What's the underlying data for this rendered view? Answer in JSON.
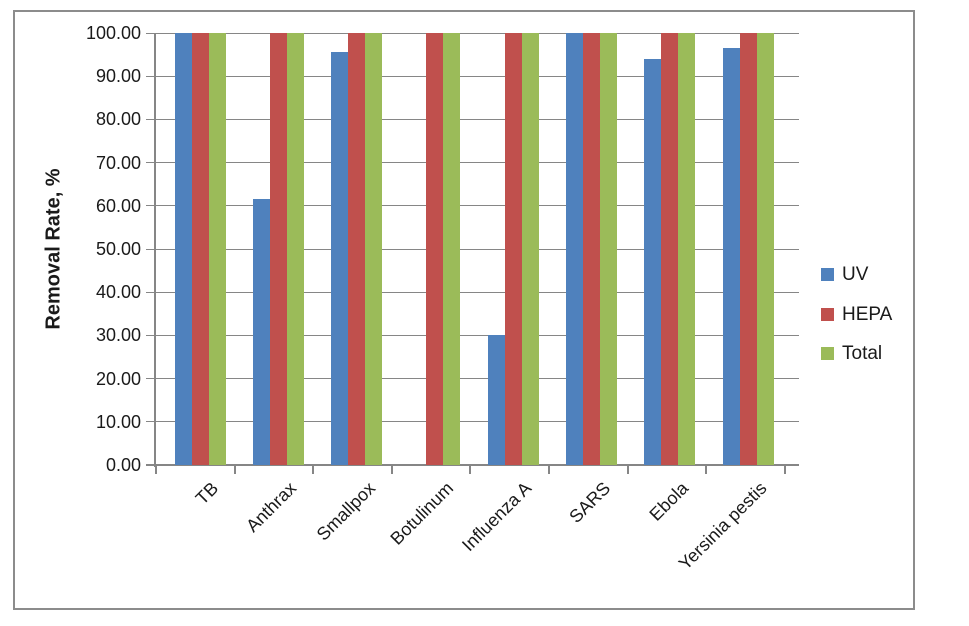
{
  "chart_data": {
    "type": "bar",
    "title": "",
    "categories": [
      "TB",
      "Anthrax",
      "Smallpox",
      "Botulinum",
      "Influenza A",
      "SARS",
      "Ebola",
      "Yersinia pestis"
    ],
    "series": [
      {
        "name": "UV",
        "color": "#4F81BD",
        "values": [
          100,
          61.5,
          95.5,
          0,
          30,
          100,
          94,
          96.5
        ]
      },
      {
        "name": "HEPA",
        "color": "#C0504D",
        "values": [
          100,
          100,
          100,
          100,
          100,
          100,
          100,
          100
        ]
      },
      {
        "name": "Total",
        "color": "#9BBB59",
        "values": [
          100,
          100,
          100,
          100,
          100,
          100,
          100,
          100
        ]
      }
    ],
    "xlabel": "",
    "ylabel": "Removal Rate, %",
    "ylim": [
      0,
      100
    ],
    "ytick_step": 10,
    "ytick_decimals": 2,
    "grid": true,
    "legend_position": "right",
    "colors": {
      "axis": "#868686",
      "frame_border": "#8c8c8c",
      "text": "#1a1a1a",
      "background": "#ffffff"
    }
  }
}
